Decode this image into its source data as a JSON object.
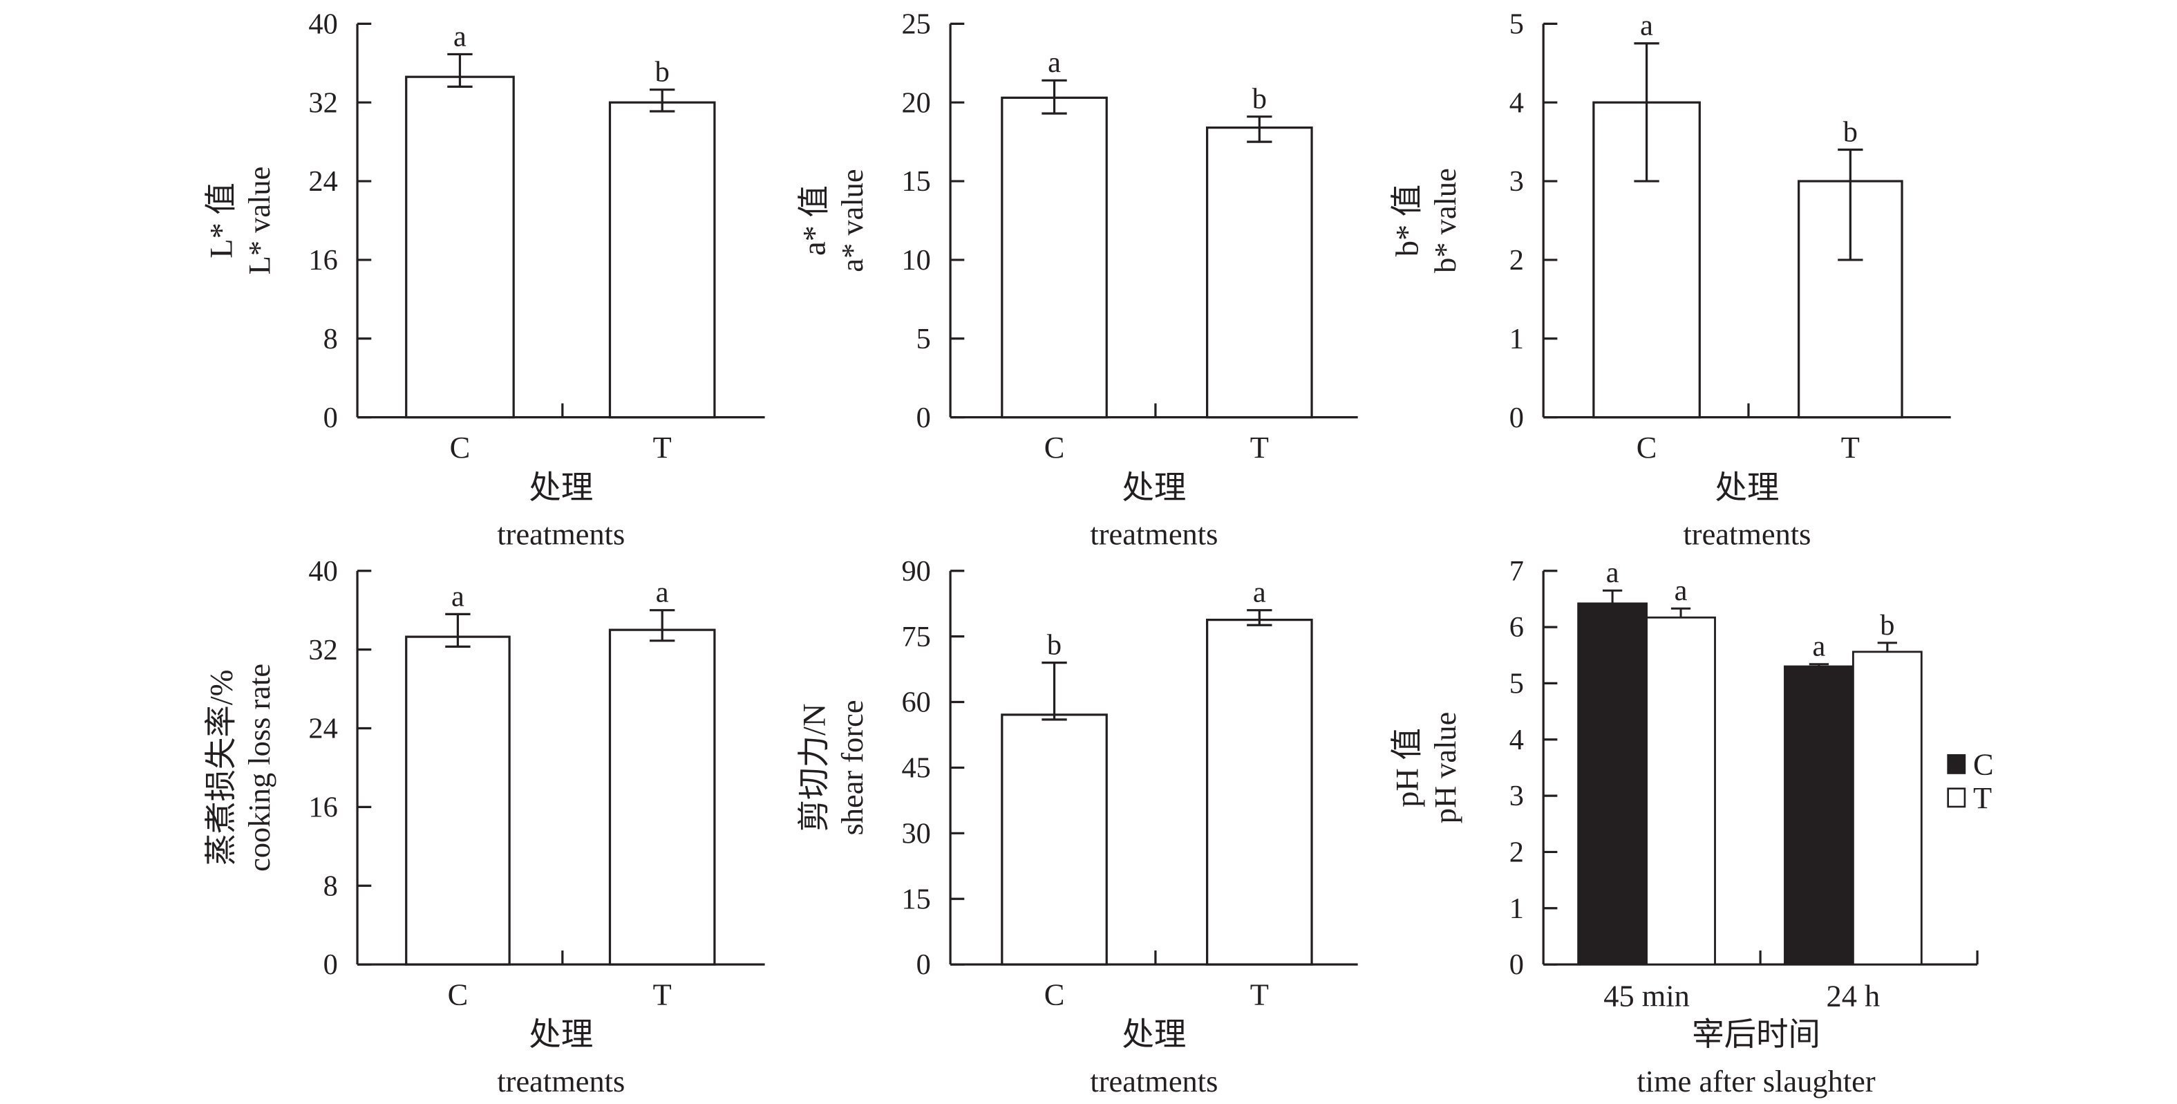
{
  "chart_data": [
    {
      "type": "bar",
      "ylabel_cn": "L* 值",
      "ylabel_en": "L* value",
      "ylabel_sym": "L",
      "xlabel_cn": "处理",
      "xlabel_en": "treatments",
      "categories": [
        "C",
        "T"
      ],
      "ylim": [
        0,
        40
      ],
      "yticks": [
        0,
        8,
        16,
        24,
        32,
        40
      ],
      "series": [
        {
          "name": "mean",
          "values": [
            34.6,
            32.0
          ],
          "err_up": [
            36.9,
            33.3
          ],
          "err_down": [
            33.6,
            31.1
          ],
          "letters": [
            "a",
            "b"
          ]
        }
      ]
    },
    {
      "type": "bar",
      "ylabel_cn": "a* 值",
      "ylabel_en": "a* value",
      "ylabel_sym": "a",
      "xlabel_cn": "处理",
      "xlabel_en": "treatments",
      "categories": [
        "C",
        "T"
      ],
      "ylim": [
        0,
        25
      ],
      "yticks": [
        0,
        5,
        10,
        15,
        20,
        25
      ],
      "series": [
        {
          "name": "mean",
          "values": [
            20.3,
            18.4
          ],
          "err_up": [
            21.4,
            19.1
          ],
          "err_down": [
            19.3,
            17.5
          ],
          "letters": [
            "a",
            "b"
          ]
        }
      ]
    },
    {
      "type": "bar",
      "ylabel_cn": "b* 值",
      "ylabel_en": "b* value",
      "ylabel_sym": "b",
      "xlabel_cn": "处理",
      "xlabel_en": "treatments",
      "categories": [
        "C",
        "T"
      ],
      "ylim": [
        0,
        5
      ],
      "yticks": [
        0,
        1,
        2,
        3,
        4,
        5
      ],
      "series": [
        {
          "name": "mean",
          "values": [
            4.0,
            3.0
          ],
          "err_up": [
            4.75,
            3.4
          ],
          "err_down": [
            3.0,
            2.0
          ],
          "letters": [
            "a",
            "b"
          ]
        }
      ]
    },
    {
      "type": "bar",
      "ylabel_cn": "蒸煮损失率/%",
      "ylabel_en": "cooking loss rate",
      "xlabel_cn": "处理",
      "xlabel_en": "treatments",
      "categories": [
        "C",
        "T"
      ],
      "ylim": [
        0,
        40
      ],
      "yticks": [
        0,
        8,
        16,
        24,
        32,
        40
      ],
      "series": [
        {
          "name": "mean",
          "values": [
            33.3,
            34.0
          ],
          "err_up": [
            35.6,
            36.0
          ],
          "err_down": [
            32.3,
            32.9
          ],
          "letters": [
            "a",
            "a"
          ]
        }
      ]
    },
    {
      "type": "bar",
      "ylabel_cn": "剪切力/N",
      "ylabel_en": "shear force",
      "xlabel_cn": "处理",
      "xlabel_en": "treatments",
      "categories": [
        "C",
        "T"
      ],
      "ylim": [
        0,
        90
      ],
      "yticks": [
        0,
        15,
        30,
        45,
        60,
        75,
        90
      ],
      "series": [
        {
          "name": "mean",
          "values": [
            57.1,
            78.8
          ],
          "err_up": [
            69.0,
            81.0
          ],
          "err_down": [
            56.0,
            77.6
          ],
          "letters": [
            "b",
            "a"
          ]
        }
      ]
    },
    {
      "type": "bar",
      "grouped": true,
      "ylabel_cn": "pH 值",
      "ylabel_en": "pH value",
      "xlabel_cn": "宰后时间",
      "xlabel_en": "time after slaughter",
      "categories": [
        "45 min",
        "24 h"
      ],
      "ylim": [
        0,
        7
      ],
      "yticks": [
        0,
        1,
        2,
        3,
        4,
        5,
        6,
        7
      ],
      "legend": {
        "position": "right",
        "entries": [
          "C",
          "T"
        ]
      },
      "series": [
        {
          "name": "C",
          "color": "#231f20",
          "values": [
            6.42,
            5.3
          ],
          "err_up": [
            6.65,
            5.34
          ],
          "letters": [
            "a",
            "a"
          ]
        },
        {
          "name": "T",
          "color": "#ffffff",
          "values": [
            6.17,
            5.56
          ],
          "err_up": [
            6.33,
            5.72
          ],
          "letters": [
            "a",
            "b"
          ]
        }
      ]
    }
  ]
}
